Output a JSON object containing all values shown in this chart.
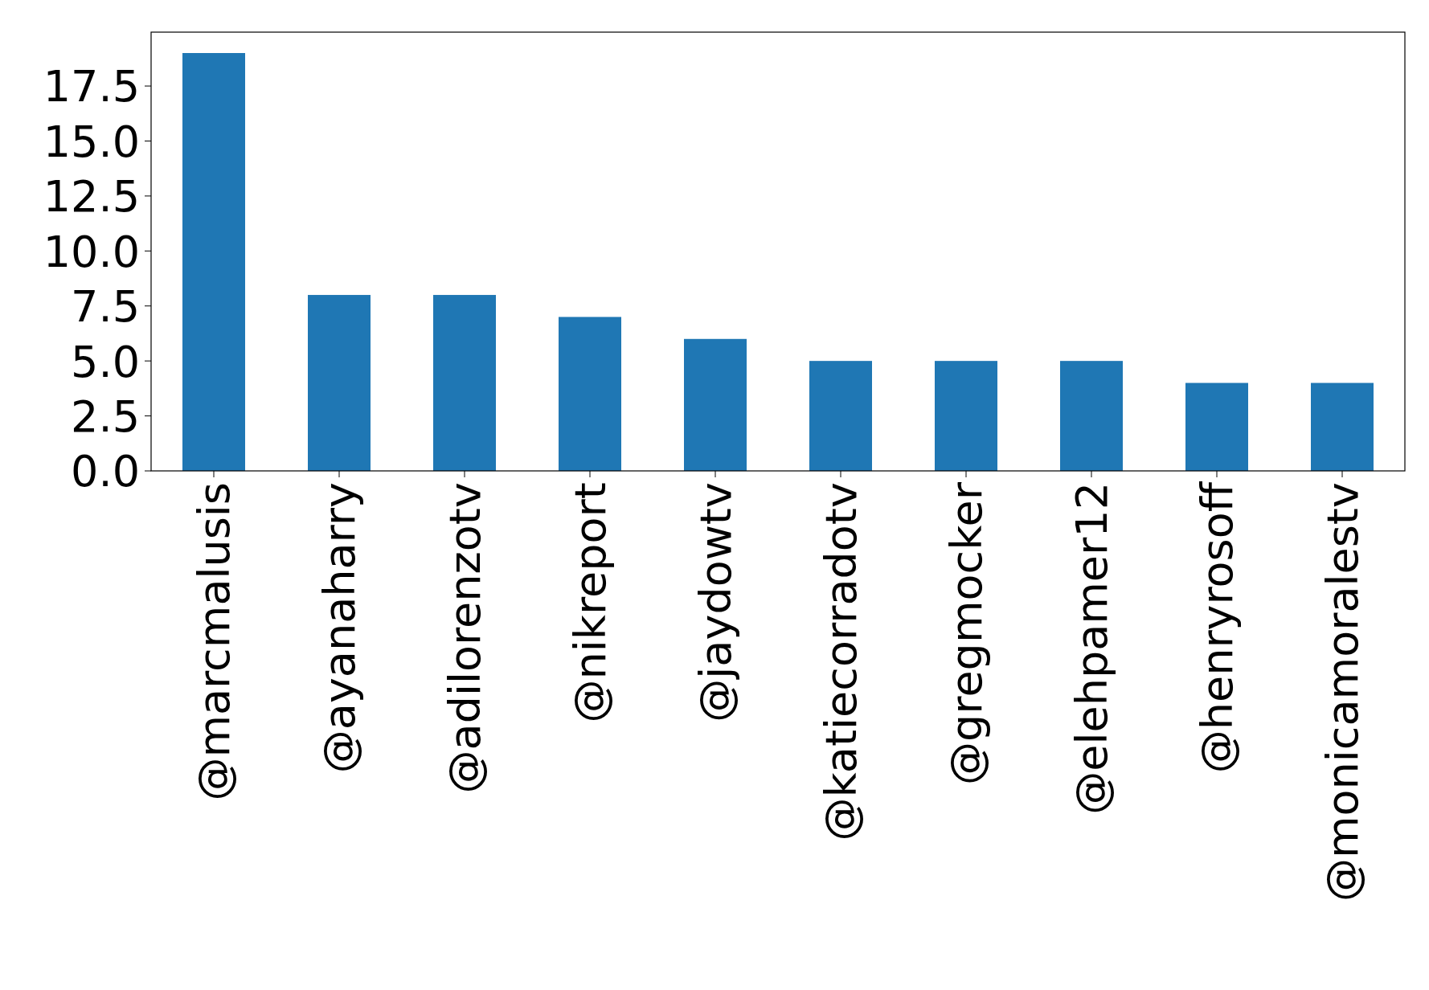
{
  "chart_data": {
    "type": "bar",
    "categories": [
      "@marcmalusis",
      "@ayanaharry",
      "@adilorenzotv",
      "@nikreport",
      "@jaydowtv",
      "@katiecorradotv",
      "@gregmocker",
      "@elehpamer12",
      "@henryrosoff",
      "@monicamoralestv"
    ],
    "values": [
      19,
      8,
      8,
      7,
      6,
      5,
      5,
      5,
      4,
      4
    ],
    "color": "#1f77b4",
    "ylim": [
      0,
      19.95
    ],
    "yticks": [
      {
        "value": 0,
        "label": "0.0"
      },
      {
        "value": 2.5,
        "label": "2.5"
      },
      {
        "value": 5,
        "label": "5.0"
      },
      {
        "value": 7.5,
        "label": "7.5"
      },
      {
        "value": 10,
        "label": "10.0"
      },
      {
        "value": 12.5,
        "label": "12.5"
      },
      {
        "value": 15,
        "label": "15.0"
      },
      {
        "value": 17.5,
        "label": "17.5"
      }
    ],
    "grid": false
  }
}
